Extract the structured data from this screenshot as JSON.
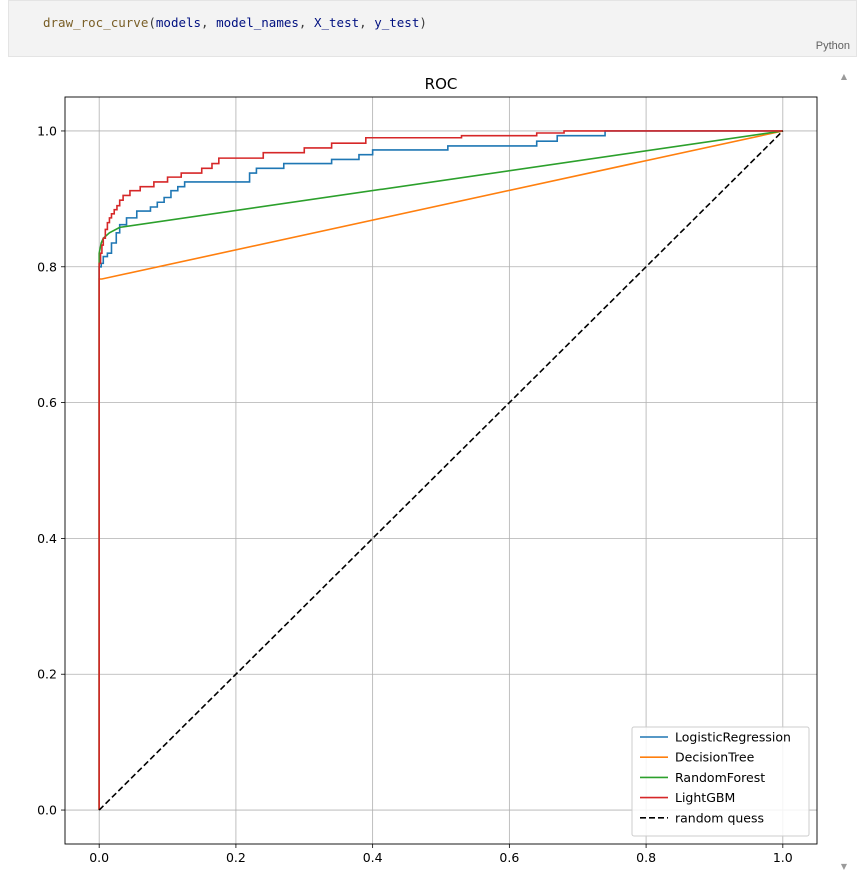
{
  "code_cell": {
    "tokens": [
      {
        "text": "draw_roc_curve",
        "kind": "fn"
      },
      {
        "text": "(",
        "kind": "punc"
      },
      {
        "text": "models",
        "kind": "var"
      },
      {
        "text": ", ",
        "kind": "punc"
      },
      {
        "text": "model_names",
        "kind": "var"
      },
      {
        "text": ", ",
        "kind": "punc"
      },
      {
        "text": "X_test",
        "kind": "var"
      },
      {
        "text": ", ",
        "kind": "punc"
      },
      {
        "text": "y_test",
        "kind": "var"
      },
      {
        "text": ")",
        "kind": "punc"
      }
    ],
    "language": "Python"
  },
  "output": {
    "scroll_up_glyph": "▲",
    "scroll_down_glyph": "▼"
  },
  "chart_data": {
    "type": "line",
    "title": "ROC",
    "xlabel": "",
    "ylabel": "",
    "xlim": [
      -0.05,
      1.05
    ],
    "ylim": [
      -0.05,
      1.05
    ],
    "xticks": [
      "0.0",
      "0.2",
      "0.4",
      "0.6",
      "0.8",
      "1.0"
    ],
    "yticks": [
      "0.0",
      "0.2",
      "0.4",
      "0.6",
      "0.8",
      "1.0"
    ],
    "grid": true,
    "legend_position": "lower-right",
    "series": [
      {
        "name": "LogisticRegression",
        "color": "#1f77b4",
        "style": "solid",
        "x": [
          0,
          0,
          0.003,
          0.003,
          0.006,
          0.006,
          0.012,
          0.012,
          0.018,
          0.018,
          0.025,
          0.025,
          0.03,
          0.03,
          0.04,
          0.04,
          0.055,
          0.055,
          0.075,
          0.075,
          0.085,
          0.085,
          0.095,
          0.095,
          0.105,
          0.105,
          0.115,
          0.115,
          0.125,
          0.125,
          0.22,
          0.22,
          0.23,
          0.23,
          0.27,
          0.27,
          0.34,
          0.34,
          0.38,
          0.38,
          0.4,
          0.4,
          0.51,
          0.51,
          0.64,
          0.64,
          0.67,
          0.67,
          0.74,
          0.74,
          1.0
        ],
        "y": [
          0,
          0.8,
          0.8,
          0.805,
          0.805,
          0.815,
          0.815,
          0.82,
          0.82,
          0.835,
          0.835,
          0.85,
          0.85,
          0.862,
          0.862,
          0.872,
          0.872,
          0.882,
          0.882,
          0.888,
          0.888,
          0.895,
          0.895,
          0.902,
          0.902,
          0.912,
          0.912,
          0.918,
          0.918,
          0.925,
          0.925,
          0.938,
          0.938,
          0.945,
          0.945,
          0.952,
          0.952,
          0.958,
          0.958,
          0.965,
          0.965,
          0.972,
          0.972,
          0.978,
          0.978,
          0.985,
          0.985,
          0.993,
          0.993,
          1.0,
          1.0
        ]
      },
      {
        "name": "DecisionTree",
        "color": "#ff7f0e",
        "style": "solid",
        "x": [
          0,
          0,
          0.004,
          1.0
        ],
        "y": [
          0,
          0.782,
          0.782,
          1.0
        ]
      },
      {
        "name": "RandomForest",
        "color": "#2ca02c",
        "style": "solid",
        "x": [
          0,
          0,
          0.003,
          0.006,
          0.015,
          0.03,
          1.0
        ],
        "y": [
          0,
          0.82,
          0.835,
          0.842,
          0.85,
          0.858,
          1.0
        ]
      },
      {
        "name": "LightGBM",
        "color": "#d62728",
        "style": "solid",
        "x": [
          0,
          0,
          0.002,
          0.002,
          0.004,
          0.004,
          0.006,
          0.006,
          0.009,
          0.009,
          0.012,
          0.012,
          0.015,
          0.015,
          0.018,
          0.018,
          0.022,
          0.022,
          0.026,
          0.026,
          0.03,
          0.03,
          0.035,
          0.035,
          0.045,
          0.045,
          0.06,
          0.06,
          0.08,
          0.08,
          0.1,
          0.1,
          0.12,
          0.12,
          0.15,
          0.15,
          0.165,
          0.165,
          0.175,
          0.175,
          0.24,
          0.24,
          0.3,
          0.3,
          0.34,
          0.34,
          0.39,
          0.39,
          0.53,
          0.53,
          0.64,
          0.64,
          0.68,
          0.68,
          1.0
        ],
        "y": [
          0,
          0.805,
          0.805,
          0.82,
          0.82,
          0.832,
          0.832,
          0.842,
          0.842,
          0.855,
          0.855,
          0.865,
          0.865,
          0.872,
          0.872,
          0.878,
          0.878,
          0.884,
          0.884,
          0.89,
          0.89,
          0.898,
          0.898,
          0.905,
          0.905,
          0.912,
          0.912,
          0.918,
          0.918,
          0.925,
          0.925,
          0.932,
          0.932,
          0.938,
          0.938,
          0.945,
          0.945,
          0.952,
          0.952,
          0.96,
          0.96,
          0.968,
          0.968,
          0.975,
          0.975,
          0.982,
          0.982,
          0.99,
          0.99,
          0.993,
          0.993,
          0.997,
          0.997,
          1.0,
          1.0
        ]
      },
      {
        "name": "random quess",
        "color": "#000000",
        "style": "dashed",
        "x": [
          0,
          1.0
        ],
        "y": [
          0,
          1.0
        ]
      }
    ]
  }
}
